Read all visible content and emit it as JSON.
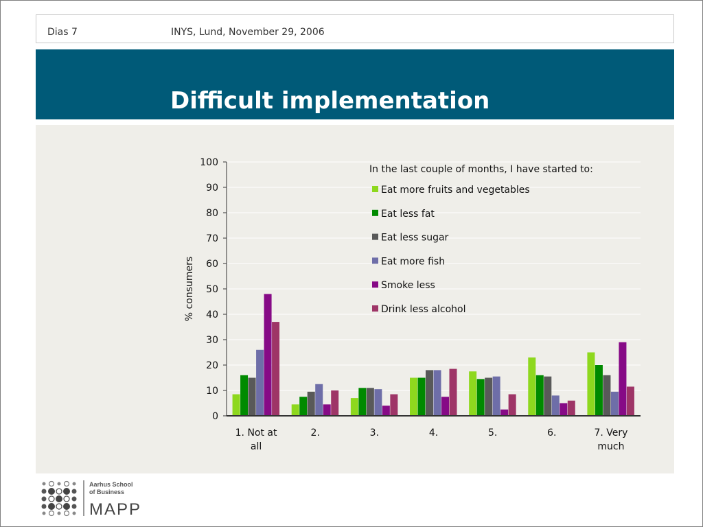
{
  "header": {
    "left_text": "Dias 7",
    "center_text": "INYS, Lund, November 29, 2006"
  },
  "title": "Difficult implementation",
  "colors": {
    "title_band": "#005a78",
    "content_bg": "#efeee9"
  },
  "chart_data": {
    "type": "bar",
    "title": "In the last couple of months, I have started to:",
    "xlabel": "",
    "ylabel": "% consumers",
    "ylim": [
      0,
      100
    ],
    "yticks": [
      "0",
      "10",
      "20",
      "30",
      "40",
      "50",
      "60",
      "70",
      "80",
      "90",
      "100"
    ],
    "grid": true,
    "legend_position": "top-right",
    "categories": [
      [
        "1. Not at",
        "all"
      ],
      [
        "2."
      ],
      [
        "3."
      ],
      [
        "4."
      ],
      [
        "5."
      ],
      [
        "6."
      ],
      [
        "7. Very",
        "much"
      ]
    ],
    "series": [
      {
        "name": "Eat more fruits and vegetables",
        "color": "#8ed81e",
        "values": [
          8.5,
          4.5,
          7,
          15,
          17.5,
          23,
          25
        ]
      },
      {
        "name": "Eat less fat",
        "color": "#008a00",
        "values": [
          16,
          7.5,
          11,
          15,
          14.5,
          16,
          20
        ]
      },
      {
        "name": "Eat less sugar",
        "color": "#595959",
        "values": [
          15,
          9.5,
          11,
          18,
          15,
          15.5,
          16
        ]
      },
      {
        "name": "Eat more fish",
        "color": "#6e6ea8",
        "values": [
          26,
          12.5,
          10.5,
          18,
          15.5,
          8,
          9.5
        ]
      },
      {
        "name": "Smoke less",
        "color": "#860a86",
        "values": [
          48,
          4.5,
          4,
          7.5,
          2.5,
          5,
          29
        ]
      },
      {
        "name": "Drink less alcohol",
        "color": "#9e3567",
        "values": [
          37,
          10,
          8.5,
          18.5,
          8.5,
          6,
          11.5
        ]
      }
    ]
  },
  "logo": {
    "line1": "Aarhus School",
    "line2": "of Business",
    "brand": "MAPP"
  }
}
